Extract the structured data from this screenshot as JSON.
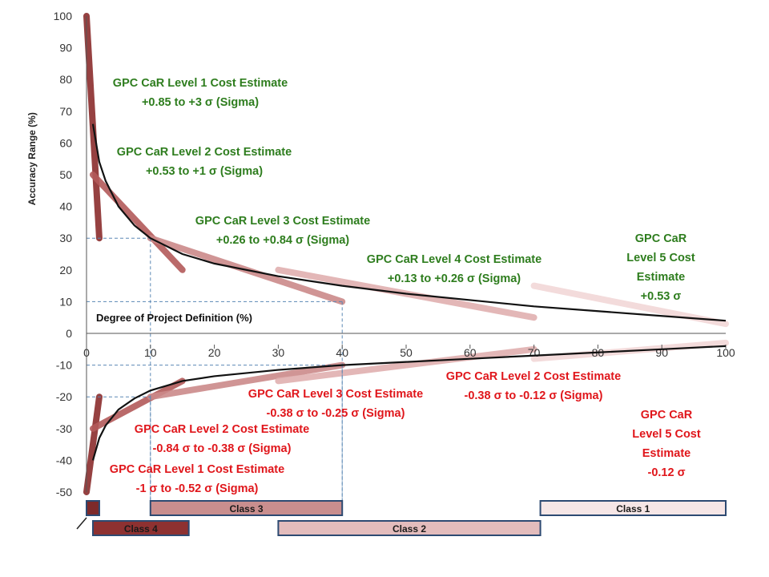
{
  "chart_data": {
    "type": "line",
    "xlabel": "Degree of Project Definition (%)",
    "ylabel": "Accuracy Range (%)",
    "xlim": [
      0,
      100
    ],
    "ylim": [
      -50,
      100
    ],
    "x_ticks": [
      0,
      10,
      20,
      30,
      40,
      50,
      60,
      70,
      80,
      90,
      100
    ],
    "y_ticks": [
      100,
      90,
      80,
      70,
      60,
      50,
      40,
      30,
      20,
      10,
      0,
      -10,
      -20,
      -30,
      -40,
      -50
    ],
    "series": [
      {
        "role": "upper-curve",
        "x": [
          1,
          2,
          3,
          5,
          7.5,
          10,
          15,
          20,
          30,
          40,
          50,
          60,
          70,
          80,
          90,
          100
        ],
        "y": [
          66,
          54,
          48,
          40,
          34,
          30,
          25,
          22,
          18,
          15,
          12.5,
          10.5,
          8.5,
          7,
          5.5,
          4
        ]
      },
      {
        "role": "lower-curve",
        "x": [
          1,
          2,
          3,
          5,
          7.5,
          10,
          15,
          20,
          30,
          40,
          50,
          60,
          70,
          80,
          90,
          100
        ],
        "y": [
          -40,
          -33,
          -29,
          -24,
          -20.5,
          -18,
          -15,
          -13.5,
          -11.5,
          -10,
          -9,
          -8,
          -7,
          -6,
          -5,
          -4
        ]
      }
    ],
    "bands": [
      {
        "x": [
          0,
          2
        ],
        "y": [
          100,
          30
        ],
        "color": "#8b2d2d"
      },
      {
        "x": [
          1,
          15
        ],
        "y": [
          50,
          20
        ],
        "color": "#b35a5a"
      },
      {
        "x": [
          10,
          40
        ],
        "y": [
          30,
          10
        ],
        "color": "#cc8a8a"
      },
      {
        "x": [
          30,
          70
        ],
        "y": [
          20,
          5
        ],
        "color": "#e0b0b0"
      },
      {
        "x": [
          70,
          100
        ],
        "y": [
          15,
          3
        ],
        "color": "#f2d8d8"
      },
      {
        "x": [
          0,
          2
        ],
        "y": [
          -50,
          -20
        ],
        "color": "#8b2d2d"
      },
      {
        "x": [
          1,
          15
        ],
        "y": [
          -30,
          -15
        ],
        "color": "#b35a5a"
      },
      {
        "x": [
          10,
          40
        ],
        "y": [
          -20,
          -10
        ],
        "color": "#cc8a8a"
      },
      {
        "x": [
          30,
          70
        ],
        "y": [
          -15,
          -5
        ],
        "color": "#e0b0b0"
      },
      {
        "x": [
          70,
          100
        ],
        "y": [
          -8,
          -3
        ],
        "color": "#f2d8d8"
      }
    ],
    "guides": [
      {
        "x": 10,
        "y": 30
      },
      {
        "x": 40,
        "y": 10
      },
      {
        "x": 10,
        "y": -20
      },
      {
        "x": 40,
        "y": -10
      }
    ],
    "upper_annotations": [
      {
        "lines": [
          "GPC CaR Level 1 Cost Estimate",
          "+0.85 to +3 σ (Sigma)"
        ]
      },
      {
        "lines": [
          "GPC CaR Level 2 Cost Estimate",
          "+0.53 to +1 σ (Sigma)"
        ]
      },
      {
        "lines": [
          "GPC CaR Level 3 Cost Estimate",
          "+0.26 to +0.84 σ (Sigma)"
        ]
      },
      {
        "lines": [
          "GPC CaR Level 4 Cost Estimate",
          "+0.13 to +0.26 σ (Sigma)"
        ]
      },
      {
        "lines": [
          "GPC CaR",
          "Level 5 Cost",
          "Estimate",
          "+0.53 σ"
        ]
      }
    ],
    "lower_annotations": [
      {
        "lines": [
          "GPC CaR Level 2 Cost Estimate",
          "-0.38 σ to -0.12 σ  (Sigma)"
        ]
      },
      {
        "lines": [
          "GPC CaR Level 3 Cost Estimate",
          "-0.38 σ to -0.25 σ  (Sigma)"
        ]
      },
      {
        "lines": [
          "GPC CaR Level 2 Cost Estimate",
          "-0.84 σ to -0.38 σ  (Sigma)"
        ]
      },
      {
        "lines": [
          "GPC CaR Level 1 Cost Estimate",
          "-1 σ to -0.52 σ  (Sigma)"
        ]
      },
      {
        "lines": [
          "GPC CaR",
          "Level 5 Cost",
          "Estimate",
          "-0.12 σ"
        ]
      }
    ],
    "classes": [
      {
        "label": "",
        "x_range": [
          0,
          2
        ],
        "row": 1,
        "color": "#7e2a2a"
      },
      {
        "label": "Class 3",
        "x_range": [
          10,
          40
        ],
        "row": 1,
        "color": "#c98e8e"
      },
      {
        "label": "Class 1",
        "x_range": [
          71,
          100
        ],
        "row": 1,
        "color": "#f6e6e6"
      },
      {
        "label": "Class 4",
        "x_range": [
          1,
          16
        ],
        "row": 2,
        "color": "#8e3131"
      },
      {
        "label": "Class 2",
        "x_range": [
          30,
          71
        ],
        "row": 2,
        "color": "#e3bcbc"
      }
    ],
    "grid": false,
    "legend": "none"
  }
}
